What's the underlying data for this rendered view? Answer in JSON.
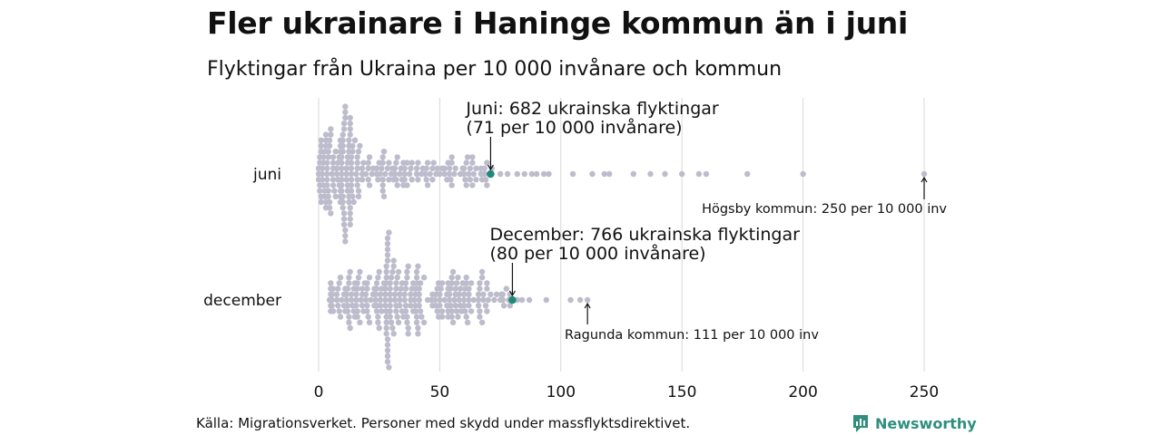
{
  "title": "Fler ukrainare i Haninge kommun än i juni",
  "subtitle": "Flyktingar från Ukraina per 10 000 invånare och kommun",
  "source": "Källa: Migrationsverket. Personer med skydd under massflyktsdirektivet.",
  "brand": "Newsworthy",
  "colors": {
    "dot": "#bdbccc",
    "highlight": "#1f8a7a",
    "grid": "#d9d9d9",
    "text": "#111111",
    "brand": "#2f8f7f"
  },
  "chart_data": {
    "type": "beeswarm",
    "title": "Fler ukrainare i Haninge kommun än i juni",
    "subtitle": "Flyktingar från Ukraina per 10 000 invånare och kommun",
    "xlabel": "",
    "ylabel": "",
    "xlim": [
      0,
      250
    ],
    "xticks": [
      0,
      50,
      100,
      150,
      200,
      250
    ],
    "grid": true,
    "series": [
      {
        "name": "juni",
        "highlight": {
          "label": "Haninge",
          "value": 71
        },
        "outliers": [
          75,
          78,
          82,
          85,
          88,
          90,
          93,
          95,
          105,
          113,
          118,
          120,
          130,
          137,
          143,
          150,
          157,
          160,
          177,
          200,
          250
        ],
        "bulk": {
          "min": 0,
          "max": 72,
          "peak": 9,
          "count": 240
        }
      },
      {
        "name": "december",
        "highlight": {
          "label": "Haninge",
          "value": 80
        },
        "outliers": [
          82,
          84,
          87,
          94,
          104,
          108,
          111
        ],
        "bulk": {
          "min": 4,
          "max": 80,
          "peak": 28,
          "count": 280
        }
      }
    ],
    "annotations": [
      {
        "series": "juni",
        "value": 71,
        "lines": [
          "Juni: 682 ukrainska flyktingar",
          "(71 per 10 000 invånare)"
        ]
      },
      {
        "series": "juni",
        "value": 250,
        "lines": [
          "Högsby kommun: 250 per 10 000 inv"
        ]
      },
      {
        "series": "december",
        "value": 80,
        "lines": [
          "December: 766 ukrainska flyktingar",
          "(80 per 10 000 invånare)"
        ]
      },
      {
        "series": "december",
        "value": 111,
        "lines": [
          "Ragunda kommun: 111 per 10 000 inv"
        ]
      }
    ]
  }
}
